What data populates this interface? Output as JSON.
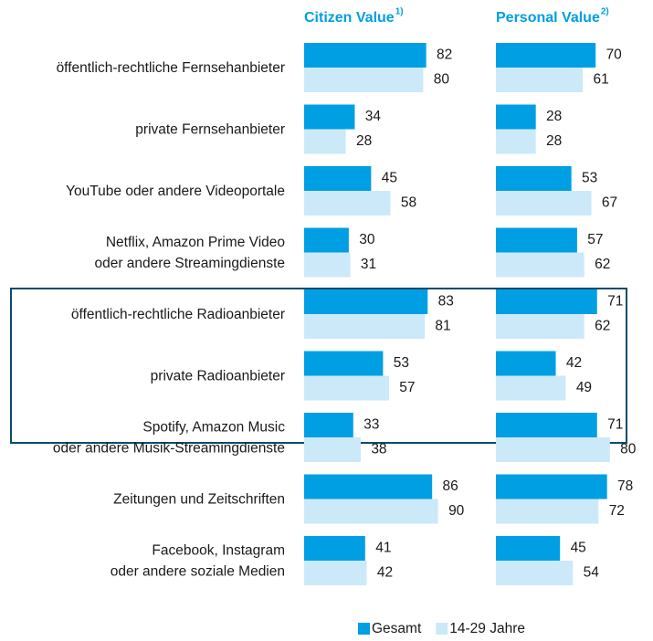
{
  "chart_data": [
    {
      "type": "hbar",
      "title": "Citizen Value",
      "title_note": "1)",
      "categories": [
        [
          "öffentlich-rechtliche Fernsehanbieter"
        ],
        [
          "private Fernsehanbieter"
        ],
        [
          "YouTube oder andere Videoportale"
        ],
        [
          "Netflix, Amazon Prime Video",
          "oder andere Streamingdienste"
        ],
        [
          "öffentlich-rechtliche Radioanbieter"
        ],
        [
          "private Radioanbieter"
        ],
        [
          "Spotify, Amazon Music",
          "oder andere Musik-Streamingdienste"
        ],
        [
          "Zeitungen und Zeitschriften"
        ],
        [
          "Facebook, Instagram",
          "oder andere soziale Medien"
        ]
      ],
      "series": [
        {
          "name": "Gesamt",
          "color": "#009fe3",
          "values": [
            82,
            34,
            45,
            30,
            83,
            53,
            33,
            86,
            41
          ]
        },
        {
          "name": "14-29 Jahre",
          "color": "#cce9f9",
          "values": [
            80,
            28,
            58,
            31,
            81,
            57,
            38,
            90,
            42
          ]
        }
      ],
      "xlim": [
        0,
        100
      ]
    },
    {
      "type": "hbar",
      "title": "Personal Value",
      "title_note": "2)",
      "series": [
        {
          "color": "#009fe3",
          "values": [
            70,
            28,
            53,
            57,
            71,
            42,
            71,
            78,
            45
          ]
        },
        {
          "color": "#cce9f9",
          "values": [
            61,
            28,
            67,
            62,
            62,
            49,
            80,
            72,
            54
          ]
        }
      ],
      "xlim": [
        0,
        100
      ]
    }
  ]
}
